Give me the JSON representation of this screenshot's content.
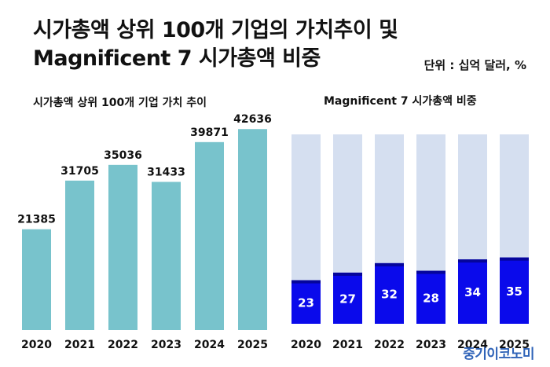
{
  "header": {
    "title_line1": "시가총액 상위 100개 기업의 가치추이 및",
    "title_line2": "Magnificent 7 시가총액 비중",
    "unit": "단위 : 십억 달러, %"
  },
  "logo": {
    "text": "중기이코노미"
  },
  "colors": {
    "teal_bar": "#78c3cc",
    "blue_fill": "#0a0aeb",
    "blue_cap": "#05059b",
    "light_bg_bar": "#d5dff0"
  },
  "chart_data": [
    {
      "type": "bar",
      "title": "시가총액 상위 100개 기업 가치 추이",
      "categories": [
        "2020",
        "2021",
        "2022",
        "2023",
        "2024",
        "2025"
      ],
      "values": [
        21385,
        31705,
        35036,
        31433,
        39871,
        42636
      ],
      "ylim": [
        0,
        46000
      ],
      "grid": false,
      "legend": "none"
    },
    {
      "type": "bar",
      "title": "Magnificent 7 시가총액 비중",
      "categories": [
        "2020",
        "2021",
        "2022",
        "2023",
        "2024",
        "2025"
      ],
      "values": [
        23,
        27,
        32,
        28,
        34,
        35
      ],
      "ylim": [
        0,
        100
      ],
      "grid": false,
      "legend": "none"
    }
  ]
}
